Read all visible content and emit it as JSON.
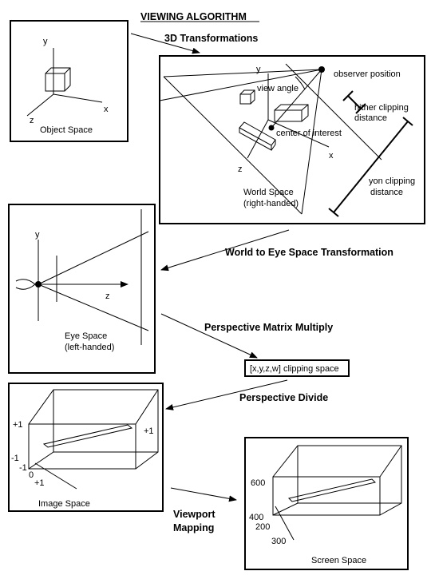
{
  "title": "VIEWING ALGORITHM",
  "steps": {
    "transform3d": "3D Transformations",
    "world_to_eye": "World to Eye Space Transformation",
    "perspective_matrix": "Perspective Matrix Multiply",
    "perspective_divide": "Perspective Divide",
    "viewport_line1": "Viewport",
    "viewport_line2": "Mapping"
  },
  "object_space": {
    "label": "Object Space",
    "y": "y",
    "x": "x",
    "z": "z"
  },
  "world_space": {
    "label1": "World Space",
    "label2": "(right-handed)",
    "y": "y",
    "x": "x",
    "z": "z",
    "observer": "observer position",
    "view_angle": "view angle",
    "hither1": "hither clipping",
    "hither2": "distance",
    "center": "center of interest",
    "yon1": "yon clipping",
    "yon2": "distance"
  },
  "eye_space": {
    "label1": "Eye Space",
    "label2": "(left-handed)",
    "y": "y",
    "z": "z"
  },
  "clip_space": {
    "label": "[x,y,z,w] clipping space"
  },
  "image_space": {
    "label": "Image Space",
    "plus1_left": "+1",
    "plus1_right": "+1",
    "minus1": "-1",
    "minus1_b": "-1",
    "zero": "0",
    "plus1_bottom": "+1"
  },
  "screen_space": {
    "label": "Screen Space",
    "v600": "600",
    "v400": "400",
    "v200": "200",
    "v300": "300"
  }
}
